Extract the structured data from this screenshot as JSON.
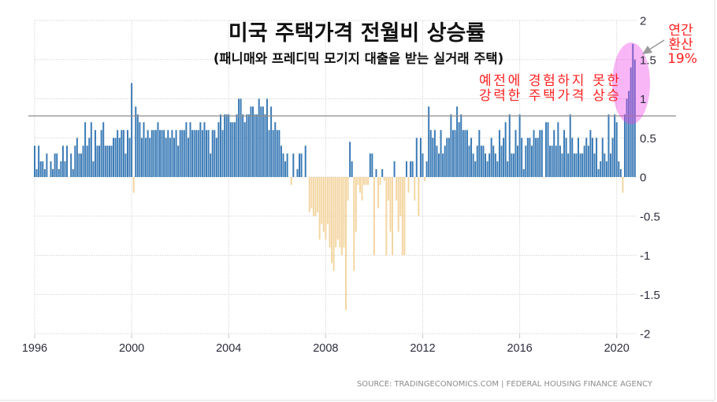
{
  "chart_data": {
    "type": "bar",
    "title": "미국 주택가격 전월비 상승률",
    "subtitle": "(패니매와 프레디믹 모기지 대출을 받는 실거래 주택)",
    "xlabel": "",
    "ylabel": "",
    "frequency": "monthly",
    "start": "1996-01",
    "values": [
      0.4,
      0.1,
      0.4,
      0.2,
      0.2,
      0.1,
      0.3,
      0.0,
      0.2,
      0.1,
      0.3,
      0.3,
      0.1,
      0.2,
      0.4,
      0.2,
      0.4,
      0.0,
      0.3,
      0.1,
      0.4,
      0.5,
      0.3,
      0.3,
      0.4,
      0.7,
      0.4,
      0.5,
      0.7,
      0.2,
      0.6,
      0.4,
      0.4,
      0.6,
      0.7,
      0.4,
      0.4,
      0.4,
      0.4,
      0.5,
      0.5,
      0.6,
      0.5,
      0.6,
      0.6,
      0.3,
      0.6,
      0.5,
      1.2,
      -0.2,
      0.9,
      0.8,
      0.7,
      0.5,
      0.7,
      0.5,
      0.6,
      0.5,
      0.6,
      0.6,
      0.6,
      0.7,
      0.6,
      0.6,
      0.6,
      0.5,
      0.6,
      0.5,
      0.6,
      0.5,
      0.6,
      0.4,
      0.6,
      0.6,
      0.6,
      0.7,
      0.5,
      0.7,
      0.6,
      0.6,
      0.6,
      0.6,
      0.7,
      0.6,
      0.7,
      0.6,
      0.6,
      0.3,
      0.6,
      0.6,
      0.5,
      0.7,
      0.8,
      0.6,
      0.8,
      0.8,
      0.8,
      0.7,
      0.7,
      0.7,
      0.8,
      1.0,
      1.0,
      0.8,
      0.7,
      0.8,
      0.8,
      0.9,
      0.9,
      0.8,
      0.8,
      1.0,
      0.9,
      0.9,
      0.8,
      1.0,
      0.6,
      0.9,
      0.6,
      0.7,
      0.6,
      0.6,
      0.4,
      0.3,
      0.2,
      0.3,
      0.0,
      -0.1,
      0.3,
      0.0,
      0.1,
      0.3,
      0.3,
      0.0,
      0.4,
      0.0,
      -0.45,
      -0.4,
      -0.5,
      -0.5,
      -0.45,
      -0.8,
      -0.6,
      -0.7,
      -0.8,
      -0.6,
      -0.9,
      -1.1,
      -1.2,
      -0.9,
      -0.8,
      -0.9,
      -1.0,
      -0.9,
      -1.7,
      -0.3,
      0.45,
      0.2,
      -1.2,
      -0.7,
      -0.1,
      -0.2,
      -0.3,
      -0.1,
      -0.1,
      -0.1,
      0.3,
      0.3,
      -1.0,
      0.1,
      -0.4,
      -0.1,
      0.1,
      -0.05,
      -1.0,
      -0.3,
      -0.7,
      -1.0,
      0.2,
      -0.3,
      -0.7,
      -0.5,
      -1.0,
      -1.0,
      0.2,
      -0.2,
      0.2,
      0.2,
      -0.3,
      0.5,
      -0.5,
      0.5,
      0.3,
      -0.05,
      0.2,
      0.9,
      0.6,
      0.5,
      0.6,
      0.4,
      0.3,
      0.6,
      0.3,
      0.4,
      0.5,
      0.5,
      0.8,
      0.6,
      0.6,
      0.9,
      0.7,
      0.8,
      0.6,
      0.6,
      0.6,
      0.4,
      0.5,
      0.3,
      0.2,
      0.4,
      0.6,
      0.4,
      0.4,
      0.3,
      0.2,
      0.3,
      0.5,
      0.4,
      0.3,
      0.2,
      0.6,
      0.4,
      0.5,
      0.7,
      0.2,
      0.8,
      0.3,
      0.3,
      0.6,
      0.4,
      0.8,
      0.5,
      0.1,
      0.4,
      0.5,
      0.5,
      0.4,
      0.6,
      0.5,
      0.5,
      0.6,
      0.6,
      0.0,
      0.7,
      0.7,
      0.4,
      0.4,
      0.6,
      0.4,
      0.7,
      0.4,
      0.3,
      0.6,
      0.5,
      0.3,
      0.8,
      0.5,
      0.3,
      0.3,
      0.5,
      0.3,
      0.3,
      0.4,
      0.5,
      0.4,
      0.6,
      0.5,
      0.3,
      0.5,
      0.1,
      0.2,
      0.5,
      0.3,
      0.2,
      0.8,
      0.3,
      0.5,
      0.8,
      0.7,
      0.2,
      0.1,
      -0.2,
      0.8,
      1.0,
      1.1,
      1.4,
      1.7,
      1.5
    ],
    "x_ticks": [
      {
        "label": "1996",
        "index": 0
      },
      {
        "label": "2000",
        "index": 48
      },
      {
        "label": "2004",
        "index": 96
      },
      {
        "label": "2008",
        "index": 144
      },
      {
        "label": "2012",
        "index": 192
      },
      {
        "label": "2016",
        "index": 240
      },
      {
        "label": "2020",
        "index": 288
      }
    ],
    "y_ticks": [
      2,
      1.5,
      1,
      0.5,
      0,
      -0.5,
      -1,
      -1.5,
      -2
    ],
    "y_tick_labels": [
      "2",
      "1.5",
      "1",
      "0.5",
      "0",
      "-0.5",
      "-1",
      "-1.5",
      "-2"
    ],
    "ylim": [
      -2,
      2
    ],
    "y_axis_side": "right",
    "grid": true,
    "legend": "none",
    "reference_line": {
      "value": 0.78
    },
    "colors": {
      "positive": "#3b7bb6",
      "negative": "#f3d6a2",
      "reference_line": "#8c8c8c",
      "annotation": "#ff2020",
      "highlight": "#f040e8",
      "arrow": "#9a9a9a"
    },
    "annotations": {
      "callout_line1": "예전에 경험하지 못한",
      "callout_line2": "강력한 주택가격 상승",
      "annual_line1": "연간",
      "annual_line2": "환산",
      "annual_value": "19%"
    },
    "source": "SOURCE: TRADINGECONOMICS.COM | FEDERAL HOUSING FINANCE AGENCY"
  }
}
